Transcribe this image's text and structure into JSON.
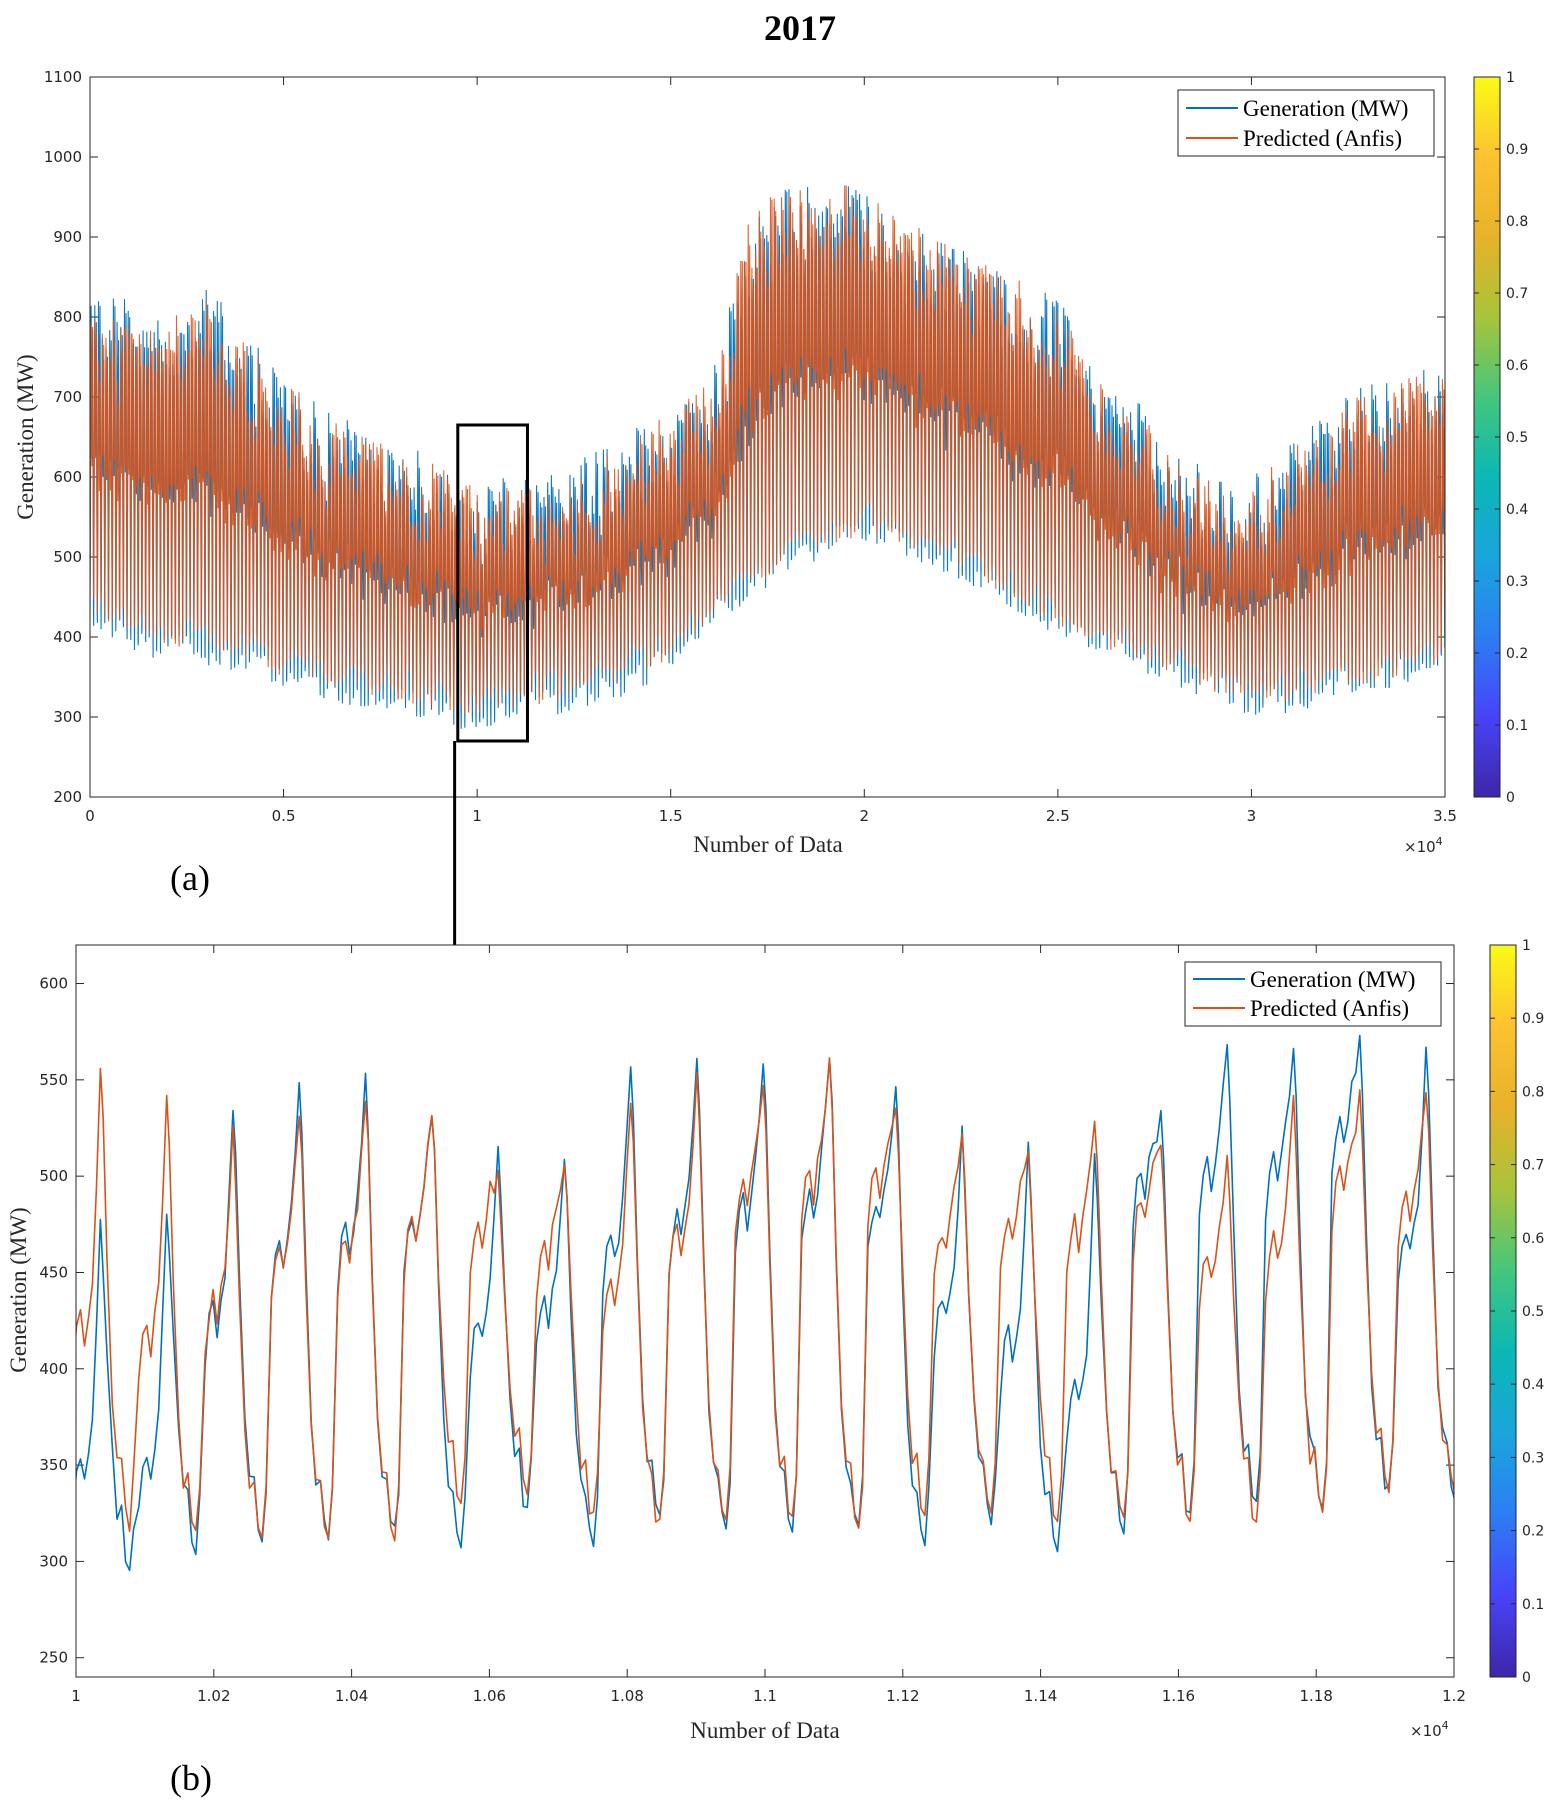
{
  "figure": {
    "title": "2017",
    "panel_labels": [
      "(a)",
      "(b)"
    ]
  },
  "colors": {
    "generation": "#0072BD",
    "predicted": "#D95319",
    "axis": "#262626",
    "colorbar": [
      "#3e26a8",
      "#4743f8",
      "#2c7ef3",
      "#1aa5dc",
      "#0ab8b4",
      "#45c67c",
      "#a8c43a",
      "#e7b22a",
      "#fdc230",
      "#f9fb15"
    ]
  },
  "chart_data": [
    {
      "type": "line",
      "panel": "(a)",
      "title": "",
      "xlabel": "Number of Data",
      "ylabel": "Generation (MW)",
      "x_exponent_label": "×10",
      "x_exponent_power": "4",
      "xlim": [
        0,
        3.5
      ],
      "ylim": [
        200,
        1100
      ],
      "xticks": [
        0,
        0.5,
        1,
        1.5,
        2,
        2.5,
        3,
        3.5
      ],
      "xtick_labels": [
        "0",
        "0.5",
        "1",
        "1.5",
        "2",
        "2.5",
        "3",
        "3.5"
      ],
      "yticks": [
        200,
        300,
        400,
        500,
        600,
        700,
        800,
        900,
        1000,
        1100
      ],
      "ytick_labels": [
        "200",
        "300",
        "400",
        "500",
        "600",
        "700",
        "800",
        "900",
        "1000",
        "1100"
      ],
      "legend": [
        "Generation (MW)",
        "Predicted (Anfis)"
      ],
      "legend_position": "top-right",
      "zoom_box": {
        "x_range": [
          0.95,
          1.13
        ],
        "y_range": [
          270,
          665
        ]
      },
      "series": [
        {
          "name": "Generation (MW)",
          "envelope_x": [
            0,
            0.1,
            0.2,
            0.3,
            0.4,
            0.5,
            0.6,
            0.7,
            0.8,
            0.9,
            1.0,
            1.1,
            1.2,
            1.3,
            1.4,
            1.5,
            1.6,
            1.7,
            1.8,
            1.9,
            2.0,
            2.1,
            2.2,
            2.3,
            2.4,
            2.5,
            2.6,
            2.7,
            2.8,
            2.9,
            3.0,
            3.1,
            3.2,
            3.3,
            3.4,
            3.5
          ],
          "daily_max": [
            800,
            790,
            760,
            800,
            730,
            690,
            640,
            620,
            600,
            580,
            560,
            550,
            560,
            590,
            620,
            640,
            680,
            870,
            920,
            930,
            920,
            880,
            850,
            840,
            800,
            780,
            690,
            650,
            590,
            560,
            560,
            600,
            640,
            680,
            690,
            700
          ],
          "daily_min": [
            430,
            400,
            390,
            380,
            370,
            350,
            340,
            330,
            320,
            310,
            300,
            310,
            320,
            330,
            350,
            380,
            430,
            460,
            500,
            520,
            540,
            520,
            500,
            480,
            450,
            420,
            400,
            380,
            360,
            340,
            320,
            320,
            340,
            350,
            360,
            380
          ]
        },
        {
          "name": "Predicted (Anfis)",
          "envelope_x": [
            0,
            0.1,
            0.2,
            0.3,
            0.4,
            0.5,
            0.6,
            0.7,
            0.8,
            0.9,
            1.0,
            1.1,
            1.2,
            1.3,
            1.4,
            1.5,
            1.6,
            1.7,
            1.8,
            1.9,
            2.0,
            2.1,
            2.2,
            2.3,
            2.4,
            2.5,
            2.6,
            2.7,
            2.8,
            2.9,
            3.0,
            3.1,
            3.2,
            3.3,
            3.4,
            3.5
          ],
          "daily_max": [
            770,
            760,
            750,
            790,
            720,
            680,
            630,
            610,
            590,
            570,
            550,
            540,
            550,
            580,
            610,
            640,
            680,
            880,
            930,
            920,
            930,
            880,
            850,
            830,
            800,
            770,
            680,
            640,
            580,
            550,
            550,
            590,
            630,
            670,
            680,
            690
          ],
          "daily_min": [
            450,
            420,
            410,
            400,
            390,
            370,
            360,
            350,
            340,
            330,
            320,
            330,
            340,
            350,
            370,
            390,
            440,
            470,
            510,
            530,
            550,
            530,
            510,
            490,
            460,
            430,
            410,
            390,
            370,
            350,
            340,
            340,
            350,
            360,
            370,
            390
          ]
        }
      ]
    },
    {
      "type": "line",
      "panel": "(b)",
      "title": "",
      "xlabel": "Number of Data",
      "ylabel": "Generation (MW)",
      "x_exponent_label": "×10",
      "x_exponent_power": "4",
      "xlim": [
        1.0,
        1.2
      ],
      "ylim": [
        240,
        620
      ],
      "xticks": [
        1.0,
        1.02,
        1.04,
        1.06,
        1.08,
        1.1,
        1.12,
        1.14,
        1.16,
        1.18,
        1.2
      ],
      "xtick_labels": [
        "1",
        "1.02",
        "1.04",
        "1.06",
        "1.08",
        "1.1",
        "1.12",
        "1.14",
        "1.16",
        "1.18",
        "1.2"
      ],
      "yticks": [
        250,
        300,
        350,
        400,
        450,
        500,
        550,
        600
      ],
      "ytick_labels": [
        "250",
        "300",
        "350",
        "400",
        "450",
        "500",
        "550",
        "600"
      ],
      "legend": [
        "Generation (MW)",
        "Predicted (Anfis)"
      ],
      "legend_position": "top-right",
      "series": [
        {
          "name": "Generation (MW)",
          "day_peaks": [
            475,
            485,
            537,
            546,
            550,
            535,
            516,
            510,
            560,
            558,
            558,
            565,
            549,
            523,
            518,
            509,
            530,
            566,
            564,
            573,
            565
          ],
          "day_troughs": [
            300,
            295,
            308,
            312,
            312,
            314,
            310,
            325,
            308,
            322,
            318,
            320,
            315,
            310,
            320,
            303,
            318,
            322,
            332,
            330,
            335
          ],
          "day_shoulders": [
            345,
            350,
            425,
            460,
            465,
            470,
            420,
            430,
            460,
            470,
            480,
            485,
            480,
            430,
            410,
            385,
            495,
            500,
            500,
            520,
            465
          ]
        },
        {
          "name": "Predicted (Anfis)",
          "day_peaks": [
            555,
            540,
            522,
            535,
            540,
            535,
            500,
            510,
            540,
            550,
            550,
            560,
            540,
            520,
            510,
            527,
            515,
            510,
            540,
            540,
            545
          ],
          "day_troughs": [
            292,
            320,
            313,
            312,
            312,
            312,
            330,
            335,
            322,
            320,
            320,
            320,
            318,
            325,
            325,
            322,
            320,
            322,
            322,
            325,
            335
          ],
          "day_shoulders": [
            420,
            415,
            430,
            455,
            460,
            470,
            470,
            460,
            440,
            465,
            490,
            495,
            495,
            465,
            470,
            470,
            480,
            450,
            460,
            495,
            480
          ]
        }
      ]
    }
  ],
  "colorbar": {
    "ticks": [
      0,
      0.1,
      0.2,
      0.3,
      0.4,
      0.5,
      0.6,
      0.7,
      0.8,
      0.9,
      1
    ],
    "tick_labels": [
      "0",
      "0.1",
      "0.2",
      "0.3",
      "0.4",
      "0.5",
      "0.6",
      "0.7",
      "0.8",
      "0.9",
      "1"
    ]
  }
}
